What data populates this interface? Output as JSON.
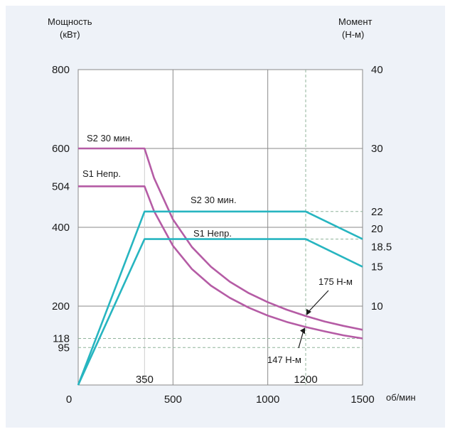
{
  "chart_data": {
    "type": "line",
    "left_axis": {
      "title_line1": "Мощность",
      "title_line2": "(кВт)",
      "range": [
        0,
        800
      ],
      "tick_labels": [
        "0",
        "95",
        "118",
        "200",
        "400",
        "504",
        "600",
        "800"
      ]
    },
    "right_axis": {
      "title_line1": "Момент",
      "title_line2": "(Н-м)",
      "range": [
        0,
        40
      ],
      "tick_labels": [
        "10",
        "15",
        "18.5",
        "20",
        "22",
        "30",
        "40"
      ]
    },
    "x_axis": {
      "unit": "об/мин",
      "range": [
        0,
        1500
      ],
      "tick_labels": [
        "0",
        "350",
        "500",
        "1000",
        "1200",
        "1500"
      ]
    },
    "grid": true,
    "colors": {
      "torque": "#b55ca5",
      "power": "#27b5c0",
      "grid": "#8a8a8a",
      "dashed": "#8fb39a",
      "panel": "#eef2f8"
    },
    "series": [
      {
        "label": "S2 30 мин.",
        "quantity": "torque",
        "axis": "left",
        "x": [
          0,
          350,
          400,
          500,
          600,
          700,
          800,
          900,
          1000,
          1100,
          1200,
          1300,
          1400,
          1500
        ],
        "y": [
          600,
          600,
          525,
          420,
          350,
          300,
          262,
          233,
          210,
          191,
          175,
          161,
          150,
          140
        ]
      },
      {
        "label": "S1 Непр.",
        "quantity": "torque",
        "axis": "left",
        "x": [
          0,
          350,
          400,
          500,
          600,
          700,
          800,
          900,
          1000,
          1100,
          1200,
          1300,
          1400,
          1500
        ],
        "y": [
          504,
          504,
          441,
          353,
          294,
          252,
          221,
          196,
          176,
          160,
          147,
          136,
          126,
          118
        ]
      },
      {
        "label": "S2 30 мин.",
        "quantity": "power",
        "axis": "right",
        "x": [
          0,
          350,
          1200,
          1500
        ],
        "y": [
          0,
          22,
          22,
          18.5
        ]
      },
      {
        "label": "S1 Непр.",
        "quantity": "power",
        "axis": "right",
        "x": [
          0,
          350,
          1200,
          1500
        ],
        "y": [
          0,
          18.5,
          18.5,
          15
        ]
      }
    ],
    "annotations": [
      {
        "text": "175 Н-м",
        "x": 1200,
        "y": 175
      },
      {
        "text": "147 Н-м",
        "x": 1200,
        "y": 147
      }
    ]
  }
}
